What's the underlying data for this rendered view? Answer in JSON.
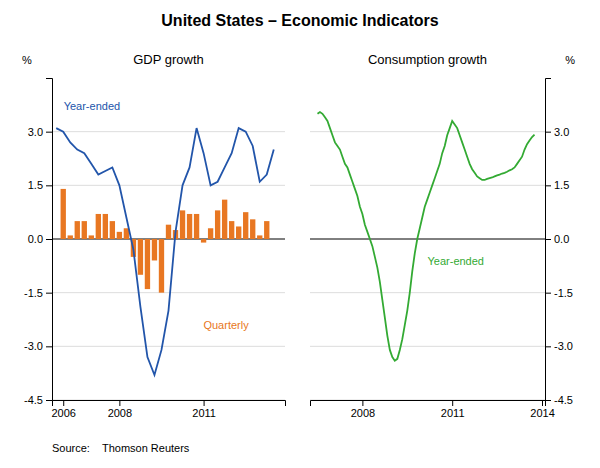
{
  "title": "United States – Economic Indicators",
  "source": "Source:    Thomson Reuters",
  "chart_data": [
    {
      "type": "bar",
      "title": "GDP growth",
      "ylabel": "%",
      "xlim": [
        2005.6,
        2013.9
      ],
      "xticks": [
        2006,
        2008,
        2011
      ],
      "ylim": [
        -4.5,
        4.5
      ],
      "yticks": [
        -4.5,
        {
          "value": -3,
          "label": "-3.0"
        },
        -1.5,
        {
          "value": 0,
          "label": "0.0"
        },
        1.5,
        {
          "value": 3,
          "label": "3.0"
        }
      ],
      "grid": true,
      "series": [
        {
          "name": "Quarterly",
          "type": "bar",
          "color": "#E87722",
          "x": [
            2006.0,
            2006.25,
            2006.5,
            2006.75,
            2007.0,
            2007.25,
            2007.5,
            2007.75,
            2008.0,
            2008.25,
            2008.5,
            2008.75,
            2009.0,
            2009.25,
            2009.5,
            2009.75,
            2010.0,
            2010.25,
            2010.5,
            2010.75,
            2011.0,
            2011.25,
            2011.5,
            2011.75,
            2012.0,
            2012.25,
            2012.5,
            2012.75,
            2013.0,
            2013.25
          ],
          "values": [
            1.4,
            0.1,
            0.5,
            0.5,
            0.1,
            0.7,
            0.7,
            0.5,
            0.2,
            0.3,
            -0.5,
            -1.0,
            -1.4,
            -0.6,
            -1.5,
            0.4,
            0.25,
            0.8,
            0.7,
            0.7,
            -0.1,
            0.3,
            0.8,
            1.1,
            0.5,
            0.35,
            0.75,
            0.55,
            0.1,
            0.5
          ]
        },
        {
          "name": "Year-ended",
          "type": "line",
          "color": "#2255AA",
          "x": [
            2005.75,
            2006.0,
            2006.25,
            2006.5,
            2006.75,
            2007.0,
            2007.25,
            2007.5,
            2007.75,
            2008.0,
            2008.25,
            2008.5,
            2008.75,
            2009.0,
            2009.25,
            2009.5,
            2009.75,
            2010.0,
            2010.25,
            2010.5,
            2010.75,
            2011.0,
            2011.25,
            2011.5,
            2011.75,
            2012.0,
            2012.25,
            2012.5,
            2012.75,
            2013.0,
            2013.25,
            2013.5
          ],
          "values": [
            3.1,
            3.0,
            2.7,
            2.5,
            2.4,
            2.1,
            1.8,
            1.9,
            2.0,
            1.5,
            0.6,
            -0.3,
            -1.9,
            -3.3,
            -3.8,
            -3.1,
            -2.0,
            0.2,
            1.5,
            2.0,
            3.1,
            2.4,
            1.5,
            1.6,
            2.0,
            2.4,
            3.1,
            3.0,
            2.6,
            1.6,
            1.8,
            2.5
          ]
        }
      ]
    },
    {
      "type": "line",
      "title": "Consumption growth",
      "ylabel": "%",
      "xlim": [
        2006.25,
        2014.1
      ],
      "xticks": [
        2008,
        2011,
        2014
      ],
      "ylim": [
        -4.5,
        4.5
      ],
      "yticks": [
        -4.5,
        {
          "value": -3,
          "label": "-3.0"
        },
        -1.5,
        {
          "value": 0,
          "label": "0.0"
        },
        1.5,
        {
          "value": 3,
          "label": "3.0"
        }
      ],
      "grid": true,
      "series": [
        {
          "name": "Year-ended",
          "color": "#33AA33",
          "x": [
            2006.5,
            2006.583,
            2006.667,
            2006.75,
            2006.833,
            2006.917,
            2007.0,
            2007.083,
            2007.167,
            2007.25,
            2007.333,
            2007.417,
            2007.5,
            2007.583,
            2007.667,
            2007.75,
            2007.833,
            2007.917,
            2008.0,
            2008.083,
            2008.167,
            2008.25,
            2008.333,
            2008.417,
            2008.5,
            2008.583,
            2008.667,
            2008.75,
            2008.833,
            2008.917,
            2009.0,
            2009.083,
            2009.167,
            2009.25,
            2009.333,
            2009.417,
            2009.5,
            2009.583,
            2009.667,
            2009.75,
            2009.833,
            2009.917,
            2010.0,
            2010.083,
            2010.167,
            2010.25,
            2010.333,
            2010.417,
            2010.5,
            2010.583,
            2010.667,
            2010.75,
            2010.833,
            2010.917,
            2011.0,
            2011.083,
            2011.167,
            2011.25,
            2011.333,
            2011.417,
            2011.5,
            2011.583,
            2011.667,
            2011.75,
            2011.833,
            2011.917,
            2012.0,
            2012.083,
            2012.167,
            2012.25,
            2012.333,
            2012.417,
            2012.5,
            2012.583,
            2012.667,
            2012.75,
            2012.833,
            2012.917,
            2013.0,
            2013.083,
            2013.167,
            2013.25,
            2013.333,
            2013.417,
            2013.5,
            2013.583,
            2013.667,
            2013.75
          ],
          "values": [
            3.5,
            3.55,
            3.5,
            3.4,
            3.3,
            3.1,
            2.9,
            2.7,
            2.6,
            2.5,
            2.3,
            2.1,
            2.0,
            1.8,
            1.6,
            1.4,
            1.2,
            0.9,
            0.7,
            0.4,
            0.2,
            0.0,
            -0.2,
            -0.5,
            -0.8,
            -1.2,
            -1.7,
            -2.2,
            -2.7,
            -3.1,
            -3.3,
            -3.4,
            -3.35,
            -3.1,
            -2.8,
            -2.4,
            -2.0,
            -1.5,
            -0.9,
            -0.4,
            0.0,
            0.3,
            0.6,
            0.9,
            1.1,
            1.3,
            1.5,
            1.7,
            1.9,
            2.1,
            2.4,
            2.6,
            2.9,
            3.1,
            3.3,
            3.2,
            3.1,
            2.9,
            2.7,
            2.5,
            2.3,
            2.1,
            1.95,
            1.85,
            1.75,
            1.7,
            1.65,
            1.65,
            1.68,
            1.7,
            1.72,
            1.75,
            1.78,
            1.8,
            1.83,
            1.85,
            1.88,
            1.92,
            1.95,
            2.0,
            2.1,
            2.2,
            2.3,
            2.5,
            2.65,
            2.75,
            2.85,
            2.92
          ]
        }
      ]
    }
  ]
}
